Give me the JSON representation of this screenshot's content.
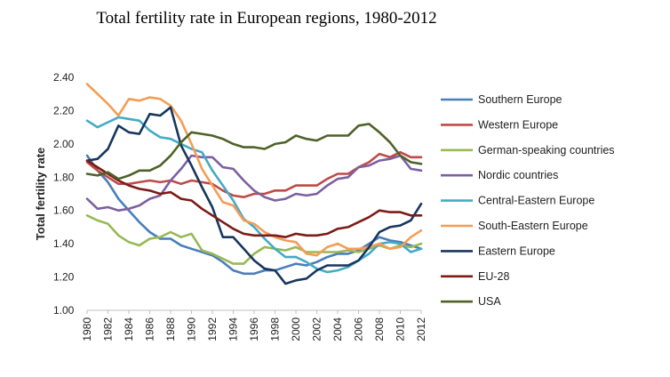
{
  "chart_data": {
    "type": "line",
    "title": "Total fertility rate in European regions, 1980-2012",
    "xlabel": "",
    "ylabel": "Total fertility rate",
    "ylim": [
      1.0,
      2.4
    ],
    "y_ticks": [
      "1.00",
      "1.20",
      "1.40",
      "1.60",
      "1.80",
      "2.00",
      "2.20",
      "2.40"
    ],
    "x": [
      1980,
      1981,
      1982,
      1983,
      1984,
      1985,
      1986,
      1987,
      1988,
      1989,
      1990,
      1991,
      1992,
      1993,
      1994,
      1995,
      1996,
      1997,
      1998,
      1999,
      2000,
      2001,
      2002,
      2003,
      2004,
      2005,
      2006,
      2007,
      2008,
      2009,
      2010,
      2011,
      2012
    ],
    "x_ticks": [
      1980,
      1982,
      1984,
      1986,
      1988,
      1990,
      1992,
      1994,
      1996,
      1998,
      2000,
      2002,
      2004,
      2006,
      2008,
      2010,
      2012
    ],
    "grid": false,
    "legend_position": "right",
    "series": [
      {
        "name": "Southern Europe",
        "color": "#4a7ebb",
        "values": [
          1.93,
          1.84,
          1.77,
          1.67,
          1.6,
          1.53,
          1.47,
          1.43,
          1.43,
          1.39,
          1.37,
          1.35,
          1.33,
          1.29,
          1.24,
          1.22,
          1.22,
          1.24,
          1.24,
          1.26,
          1.28,
          1.27,
          1.29,
          1.32,
          1.34,
          1.34,
          1.36,
          1.4,
          1.44,
          1.42,
          1.41,
          1.39,
          1.37
        ]
      },
      {
        "name": "Western Europe",
        "color": "#be4b48",
        "values": [
          1.89,
          1.84,
          1.8,
          1.76,
          1.76,
          1.77,
          1.78,
          1.77,
          1.78,
          1.76,
          1.78,
          1.77,
          1.76,
          1.72,
          1.69,
          1.68,
          1.7,
          1.7,
          1.72,
          1.72,
          1.75,
          1.75,
          1.75,
          1.79,
          1.82,
          1.82,
          1.86,
          1.89,
          1.94,
          1.92,
          1.95,
          1.92,
          1.92
        ]
      },
      {
        "name": "German-speaking countries",
        "color": "#98b954",
        "values": [
          1.57,
          1.54,
          1.52,
          1.45,
          1.41,
          1.39,
          1.43,
          1.44,
          1.47,
          1.44,
          1.46,
          1.36,
          1.34,
          1.31,
          1.28,
          1.28,
          1.34,
          1.38,
          1.37,
          1.36,
          1.38,
          1.35,
          1.35,
          1.35,
          1.35,
          1.36,
          1.35,
          1.37,
          1.39,
          1.37,
          1.39,
          1.38,
          1.4
        ]
      },
      {
        "name": "Nordic countries",
        "color": "#7d60a0",
        "values": [
          1.67,
          1.61,
          1.62,
          1.6,
          1.61,
          1.63,
          1.67,
          1.69,
          1.78,
          1.85,
          1.93,
          1.92,
          1.92,
          1.86,
          1.85,
          1.78,
          1.72,
          1.68,
          1.66,
          1.67,
          1.7,
          1.69,
          1.7,
          1.75,
          1.79,
          1.8,
          1.86,
          1.87,
          1.9,
          1.91,
          1.93,
          1.85,
          1.84
        ]
      },
      {
        "name": "Central-Eastern Europe",
        "color": "#46aac5",
        "values": [
          2.14,
          2.1,
          2.13,
          2.16,
          2.15,
          2.14,
          2.08,
          2.04,
          2.03,
          2.0,
          1.97,
          1.95,
          1.84,
          1.75,
          1.66,
          1.55,
          1.5,
          1.43,
          1.37,
          1.32,
          1.32,
          1.29,
          1.25,
          1.23,
          1.24,
          1.26,
          1.3,
          1.34,
          1.4,
          1.41,
          1.4,
          1.35,
          1.37
        ]
      },
      {
        "name": "South-Eastern Europe",
        "color": "#f59d56",
        "values": [
          2.36,
          2.3,
          2.24,
          2.17,
          2.27,
          2.26,
          2.28,
          2.27,
          2.23,
          2.14,
          2.0,
          1.85,
          1.75,
          1.65,
          1.63,
          1.54,
          1.52,
          1.47,
          1.44,
          1.42,
          1.41,
          1.34,
          1.33,
          1.38,
          1.4,
          1.37,
          1.37,
          1.38,
          1.4,
          1.37,
          1.38,
          1.44,
          1.48
        ]
      },
      {
        "name": "Eastern Europe",
        "color": "#17375e",
        "values": [
          1.9,
          1.91,
          1.97,
          2.11,
          2.07,
          2.06,
          2.18,
          2.17,
          2.22,
          1.99,
          1.87,
          1.74,
          1.62,
          1.44,
          1.44,
          1.37,
          1.3,
          1.25,
          1.24,
          1.16,
          1.18,
          1.19,
          1.24,
          1.27,
          1.27,
          1.27,
          1.3,
          1.38,
          1.47,
          1.5,
          1.51,
          1.54,
          1.64
        ]
      },
      {
        "name": "EU-28",
        "color": "#7b1c17",
        "values": [
          1.9,
          1.86,
          1.82,
          1.78,
          1.75,
          1.73,
          1.72,
          1.7,
          1.71,
          1.67,
          1.66,
          1.61,
          1.57,
          1.53,
          1.49,
          1.46,
          1.45,
          1.45,
          1.45,
          1.44,
          1.46,
          1.45,
          1.45,
          1.46,
          1.49,
          1.5,
          1.53,
          1.56,
          1.6,
          1.59,
          1.59,
          1.57,
          1.57
        ]
      },
      {
        "name": "USA",
        "color": "#4f6228",
        "values": [
          1.82,
          1.81,
          1.83,
          1.79,
          1.81,
          1.84,
          1.84,
          1.87,
          1.93,
          2.01,
          2.07,
          2.06,
          2.05,
          2.03,
          2.0,
          1.98,
          1.98,
          1.97,
          2.0,
          2.01,
          2.05,
          2.03,
          2.02,
          2.05,
          2.05,
          2.05,
          2.11,
          2.12,
          2.07,
          2.01,
          1.93,
          1.89,
          1.88
        ]
      }
    ]
  }
}
